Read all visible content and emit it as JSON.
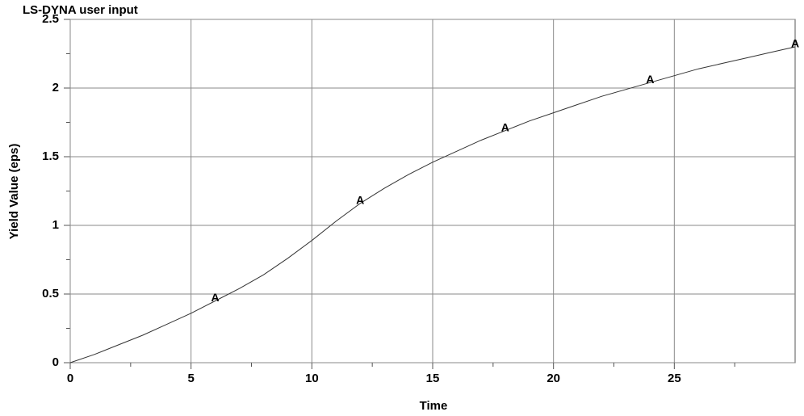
{
  "chart_data": {
    "type": "line",
    "title": "LS-DYNA user input",
    "x_label": "Time",
    "y_label": "Yield Value (eps)",
    "x": [
      0,
      1,
      2,
      3,
      4,
      5,
      6,
      7,
      8,
      9,
      10,
      11,
      12,
      13,
      14,
      15,
      16,
      17,
      18,
      19,
      20,
      21,
      22,
      23,
      24,
      25,
      26,
      27,
      28,
      29,
      30
    ],
    "series": [
      {
        "name": "A",
        "color": "#333333",
        "values": [
          0,
          0.06,
          0.13,
          0.2,
          0.28,
          0.36,
          0.45,
          0.54,
          0.64,
          0.76,
          0.89,
          1.03,
          1.16,
          1.27,
          1.37,
          1.46,
          1.54,
          1.62,
          1.69,
          1.76,
          1.82,
          1.88,
          1.94,
          1.99,
          2.04,
          2.09,
          2.14,
          2.18,
          2.22,
          2.26,
          2.3
        ]
      }
    ],
    "marker_every": 6,
    "xlim": [
      0,
      30
    ],
    "xticks": [
      0,
      5,
      10,
      15,
      20,
      25
    ],
    "xminorticks": [
      2.5,
      7.5,
      12.5,
      17.5,
      22.5,
      27.5
    ],
    "ylim": [
      0,
      2.5
    ],
    "yticks": [
      0,
      0.5,
      1,
      1.5,
      2,
      2.5
    ],
    "yminorticks": [
      0.25,
      0.75,
      1.25,
      1.75,
      2.25
    ],
    "grid": true
  }
}
